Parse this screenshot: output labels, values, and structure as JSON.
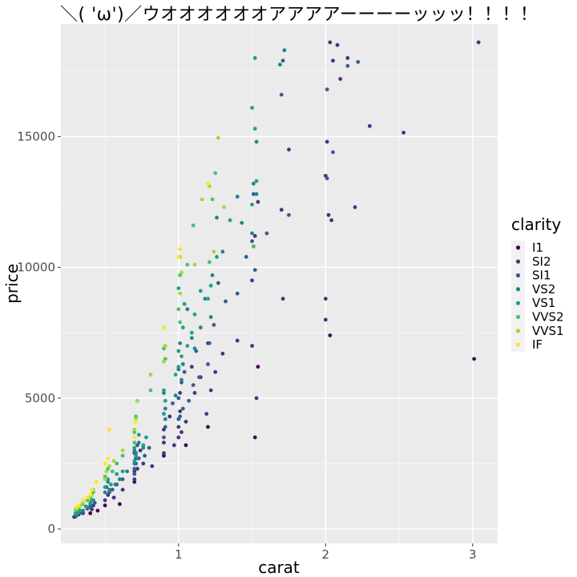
{
  "chart_data": {
    "type": "scatter",
    "title": "＼( 'ω')／ウオオオオオオアアアアーーーーッッッ！！！！",
    "xlabel": "carat",
    "ylabel": "price",
    "xlim": [
      0.2,
      3.17
    ],
    "ylim": [
      -550,
      19300
    ],
    "xticks": [
      1,
      2,
      3
    ],
    "yticks": [
      0,
      5000,
      10000,
      15000
    ],
    "ytick_labels": [
      "0",
      "5000",
      "10000",
      "15000"
    ],
    "grid": true,
    "legend": {
      "title": "clarity",
      "placement": "right",
      "entries": [
        "I1",
        "SI2",
        "SI1",
        "VS2",
        "VS1",
        "VVS2",
        "VVS1",
        "IF"
      ]
    },
    "colors": {
      "I1": "#440154",
      "SI2": "#46337e",
      "SI1": "#365c8d",
      "VS2": "#277f8e",
      "VS1": "#1fa187",
      "VVS2": "#4ac16d",
      "VVS1": "#a0da39",
      "IF": "#fde725"
    },
    "series": [
      {
        "name": "I1",
        "points": [
          [
            3.01,
            6500
          ],
          [
            2.03,
            7400
          ],
          [
            1.54,
            6200
          ],
          [
            1.52,
            3500
          ],
          [
            0.7,
            1800
          ],
          [
            0.5,
            900
          ],
          [
            0.45,
            700
          ],
          [
            0.6,
            950
          ],
          [
            0.4,
            600
          ],
          [
            0.9,
            2800
          ],
          [
            1.05,
            3200
          ],
          [
            1.2,
            3900
          ]
        ]
      },
      {
        "name": "SI2",
        "points": [
          [
            3.04,
            18600
          ],
          [
            2.53,
            15150
          ],
          [
            2.3,
            15400
          ],
          [
            2.2,
            12300
          ],
          [
            2.15,
            18000
          ],
          [
            2.08,
            18500
          ],
          [
            2.03,
            18600
          ],
          [
            2.05,
            17900
          ],
          [
            2.1,
            17200
          ],
          [
            2.01,
            14800
          ],
          [
            2.0,
            13500
          ],
          [
            2.02,
            12000
          ],
          [
            2.0,
            8800
          ],
          [
            2.0,
            8000
          ],
          [
            2.04,
            11800
          ],
          [
            1.75,
            14500
          ],
          [
            1.7,
            12200
          ],
          [
            1.71,
            8800
          ],
          [
            1.53,
            5000
          ],
          [
            1.5,
            7000
          ],
          [
            1.54,
            12500
          ],
          [
            1.51,
            10800
          ],
          [
            1.5,
            9500
          ],
          [
            1.52,
            11200
          ],
          [
            1.4,
            7200
          ],
          [
            1.3,
            6700
          ],
          [
            1.25,
            6000
          ],
          [
            1.22,
            5300
          ],
          [
            1.2,
            7100
          ],
          [
            1.19,
            4400
          ],
          [
            1.15,
            5800
          ],
          [
            1.11,
            5200
          ],
          [
            1.09,
            6200
          ],
          [
            1.05,
            4100
          ],
          [
            1.02,
            3700
          ],
          [
            1.01,
            5200
          ],
          [
            1.01,
            4500
          ],
          [
            1.0,
            3900
          ],
          [
            1.0,
            3500
          ],
          [
            0.97,
            3200
          ],
          [
            0.94,
            4300
          ],
          [
            0.9,
            3800
          ],
          [
            0.9,
            3300
          ],
          [
            0.9,
            2900
          ],
          [
            0.82,
            2400
          ],
          [
            0.76,
            2500
          ],
          [
            0.74,
            3000
          ],
          [
            0.72,
            2300
          ],
          [
            0.71,
            2700
          ],
          [
            0.7,
            2200
          ],
          [
            0.7,
            1900
          ],
          [
            0.62,
            1500
          ],
          [
            0.56,
            1200
          ],
          [
            0.52,
            1300
          ],
          [
            0.5,
            1100
          ],
          [
            0.42,
            900
          ],
          [
            0.41,
            750
          ],
          [
            0.35,
            600
          ],
          [
            0.32,
            550
          ],
          [
            0.3,
            480
          ],
          [
            0.29,
            460
          ]
        ]
      },
      {
        "name": "SI1",
        "points": [
          [
            2.22,
            17850
          ],
          [
            2.15,
            17700
          ],
          [
            2.01,
            16800
          ],
          [
            2.01,
            13400
          ],
          [
            2.05,
            14400
          ],
          [
            1.75,
            12000
          ],
          [
            1.71,
            17900
          ],
          [
            1.7,
            16600
          ],
          [
            1.6,
            11300
          ],
          [
            1.51,
            12800
          ],
          [
            1.5,
            11000
          ],
          [
            1.52,
            9900
          ],
          [
            1.46,
            10400
          ],
          [
            1.4,
            9000
          ],
          [
            1.32,
            8700
          ],
          [
            1.27,
            9400
          ],
          [
            1.24,
            7800
          ],
          [
            1.21,
            7100
          ],
          [
            1.2,
            6300
          ],
          [
            1.14,
            5800
          ],
          [
            1.12,
            6800
          ],
          [
            1.1,
            5500
          ],
          [
            1.07,
            4900
          ],
          [
            1.04,
            6000
          ],
          [
            1.03,
            4600
          ],
          [
            1.02,
            5600
          ],
          [
            1.01,
            4300
          ],
          [
            1.0,
            5000
          ],
          [
            1.0,
            4200
          ],
          [
            0.96,
            4800
          ],
          [
            0.91,
            3900
          ],
          [
            0.9,
            3500
          ],
          [
            0.9,
            4400
          ],
          [
            0.8,
            3100
          ],
          [
            0.77,
            2800
          ],
          [
            0.73,
            2700
          ],
          [
            0.72,
            3200
          ],
          [
            0.71,
            2500
          ],
          [
            0.7,
            2300
          ],
          [
            0.7,
            2900
          ],
          [
            0.7,
            2100
          ],
          [
            0.62,
            1900
          ],
          [
            0.58,
            1700
          ],
          [
            0.55,
            1500
          ],
          [
            0.53,
            1400
          ],
          [
            0.51,
            1600
          ],
          [
            0.43,
            1000
          ],
          [
            0.4,
            850
          ],
          [
            0.38,
            780
          ],
          [
            0.34,
            620
          ],
          [
            0.31,
            570
          ],
          [
            0.3,
            520
          ]
        ]
      },
      {
        "name": "VS2",
        "points": [
          [
            1.72,
            18300
          ],
          [
            1.69,
            17750
          ],
          [
            1.53,
            14800
          ],
          [
            1.53,
            12800
          ],
          [
            1.51,
            13200
          ],
          [
            1.5,
            11300
          ],
          [
            1.43,
            11700
          ],
          [
            1.4,
            12700
          ],
          [
            1.3,
            10600
          ],
          [
            1.26,
            11900
          ],
          [
            1.23,
            9700
          ],
          [
            1.22,
            8100
          ],
          [
            1.18,
            8800
          ],
          [
            1.15,
            7700
          ],
          [
            1.11,
            6900
          ],
          [
            1.09,
            7300
          ],
          [
            1.06,
            8400
          ],
          [
            1.03,
            6300
          ],
          [
            1.02,
            5700
          ],
          [
            1.01,
            7100
          ],
          [
            1.0,
            6100
          ],
          [
            0.98,
            5100
          ],
          [
            0.91,
            4600
          ],
          [
            0.91,
            4200
          ],
          [
            0.9,
            5200
          ],
          [
            0.76,
            3100
          ],
          [
            0.73,
            3300
          ],
          [
            0.72,
            2700
          ],
          [
            0.71,
            2900
          ],
          [
            0.7,
            2500
          ],
          [
            0.7,
            3000
          ],
          [
            0.65,
            2200
          ],
          [
            0.6,
            1900
          ],
          [
            0.57,
            1700
          ],
          [
            0.53,
            1500
          ],
          [
            0.52,
            1800
          ],
          [
            0.5,
            1400
          ],
          [
            0.42,
            1100
          ],
          [
            0.4,
            950
          ],
          [
            0.38,
            830
          ],
          [
            0.35,
            700
          ],
          [
            0.32,
            620
          ],
          [
            0.31,
            590
          ],
          [
            0.3,
            560
          ]
        ]
      },
      {
        "name": "VS1",
        "points": [
          [
            1.52,
            18000
          ],
          [
            1.5,
            16100
          ],
          [
            1.52,
            15300
          ],
          [
            1.53,
            13300
          ],
          [
            1.5,
            12400
          ],
          [
            1.35,
            11800
          ],
          [
            1.26,
            10400
          ],
          [
            1.22,
            9300
          ],
          [
            1.2,
            8800
          ],
          [
            1.15,
            9100
          ],
          [
            1.11,
            8200
          ],
          [
            1.09,
            7500
          ],
          [
            1.06,
            7000
          ],
          [
            1.04,
            8600
          ],
          [
            1.03,
            7700
          ],
          [
            1.02,
            6600
          ],
          [
            1.0,
            9200
          ],
          [
            1.0,
            6800
          ],
          [
            1.0,
            6200
          ],
          [
            0.98,
            5900
          ],
          [
            0.91,
            4900
          ],
          [
            0.9,
            5300
          ],
          [
            0.9,
            4400
          ],
          [
            0.78,
            3500
          ],
          [
            0.76,
            3200
          ],
          [
            0.73,
            3600
          ],
          [
            0.71,
            2800
          ],
          [
            0.7,
            3100
          ],
          [
            0.7,
            2600
          ],
          [
            0.62,
            2200
          ],
          [
            0.58,
            2100
          ],
          [
            0.54,
            1700
          ],
          [
            0.52,
            1900
          ],
          [
            0.5,
            1600
          ],
          [
            0.41,
            1100
          ],
          [
            0.4,
            1000
          ],
          [
            0.37,
            860
          ],
          [
            0.33,
            700
          ],
          [
            0.31,
            640
          ],
          [
            0.3,
            600
          ]
        ]
      },
      {
        "name": "VVS2",
        "points": [
          [
            1.51,
            10800
          ],
          [
            1.25,
            13600
          ],
          [
            1.23,
            12600
          ],
          [
            1.21,
            10200
          ],
          [
            1.1,
            11600
          ],
          [
            1.06,
            10100
          ],
          [
            1.01,
            9700
          ],
          [
            1.01,
            7900
          ],
          [
            1.0,
            8400
          ],
          [
            0.91,
            6500
          ],
          [
            0.9,
            7700
          ],
          [
            0.9,
            6900
          ],
          [
            0.81,
            5300
          ],
          [
            0.72,
            4900
          ],
          [
            0.71,
            4300
          ],
          [
            0.7,
            3700
          ],
          [
            0.7,
            3300
          ],
          [
            0.62,
            2800
          ],
          [
            0.58,
            2500
          ],
          [
            0.55,
            2200
          ],
          [
            0.52,
            2300
          ],
          [
            0.5,
            2000
          ],
          [
            0.42,
            1400
          ],
          [
            0.4,
            1200
          ],
          [
            0.38,
            1100
          ],
          [
            0.35,
            950
          ],
          [
            0.32,
            820
          ],
          [
            0.31,
            760
          ],
          [
            0.3,
            720
          ]
        ]
      },
      {
        "name": "VVS1",
        "points": [
          [
            1.27,
            14950
          ],
          [
            1.21,
            13100
          ],
          [
            1.16,
            12600
          ],
          [
            1.31,
            12300
          ],
          [
            1.24,
            10600
          ],
          [
            1.11,
            10100
          ],
          [
            1.02,
            9800
          ],
          [
            1.01,
            10400
          ],
          [
            1.01,
            9000
          ],
          [
            0.91,
            7000
          ],
          [
            0.9,
            6400
          ],
          [
            0.81,
            5900
          ],
          [
            0.72,
            4900
          ],
          [
            0.71,
            4200
          ],
          [
            0.7,
            3800
          ],
          [
            0.62,
            3000
          ],
          [
            0.56,
            2600
          ],
          [
            0.53,
            2400
          ],
          [
            0.51,
            2200
          ],
          [
            0.5,
            1900
          ],
          [
            0.42,
            1500
          ],
          [
            0.41,
            1300
          ],
          [
            0.39,
            1200
          ],
          [
            0.35,
            1000
          ],
          [
            0.33,
            900
          ],
          [
            0.31,
            800
          ],
          [
            0.3,
            760
          ]
        ]
      },
      {
        "name": "IF",
        "points": [
          [
            1.2,
            13200
          ],
          [
            1.01,
            10700
          ],
          [
            1.0,
            10400
          ],
          [
            0.9,
            7700
          ],
          [
            0.71,
            4100
          ],
          [
            0.7,
            3500
          ],
          [
            0.53,
            3800
          ],
          [
            0.52,
            2700
          ],
          [
            0.5,
            2500
          ],
          [
            0.44,
            1800
          ],
          [
            0.41,
            1500
          ],
          [
            0.4,
            1300
          ],
          [
            0.38,
            1200
          ],
          [
            0.35,
            1100
          ],
          [
            0.32,
            900
          ],
          [
            0.31,
            850
          ]
        ]
      }
    ]
  }
}
